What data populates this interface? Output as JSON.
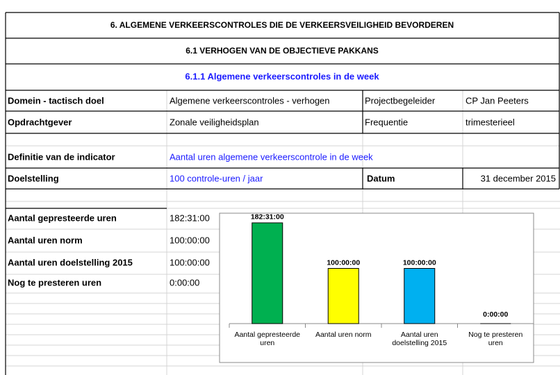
{
  "header": {
    "title": "6. ALGEMENE VERKEERSCONTROLES DIE DE VERKEERSVEILIGHEID BEVORDEREN",
    "subtitle": "6.1 VERHOGEN VAN DE OBJECTIEVE PAKKANS",
    "section": "6.1.1 Algemene verkeerscontroles in de week"
  },
  "fields": [
    [
      "Domein - tactisch doel",
      "Algemene verkeerscontroles - verhogen",
      "Projectbegeleider",
      "CP Jan Peeters"
    ],
    [
      "Opdrachtgever",
      "Zonale veiligheidsplan",
      "Frequentie",
      "trimesterieel"
    ]
  ],
  "indicator": [
    "Definitie van de indicator",
    "Aantal uren algemene verkeerscontrole in de week"
  ],
  "goal": [
    "Doelstelling",
    "100 controle-uren / jaar",
    "Datum",
    "31 december 2015"
  ],
  "hours": [
    [
      "Aantal gepresteerde uren",
      "182:31:00"
    ],
    [
      "Aantal uren norm",
      "100:00:00"
    ],
    [
      "Aantal uren doelstelling 2015",
      "100:00:00"
    ],
    [
      "Nog te presteren uren",
      "0:00:00"
    ]
  ],
  "chart_data": {
    "type": "bar",
    "categories": [
      "Aantal gepresteerde uren",
      "Aantal uren norm",
      "Aantal uren doelstelling 2015",
      "Nog te presteren uren"
    ],
    "values": [
      182.5167,
      100,
      100,
      0
    ],
    "value_labels": [
      "182:31:00",
      "100:00:00",
      "100:00:00",
      "0:00:00"
    ],
    "colors": [
      "#00b050",
      "#ffff00",
      "#00b0f0",
      "#7f7f7f"
    ],
    "ylim": [
      0,
      200
    ]
  }
}
